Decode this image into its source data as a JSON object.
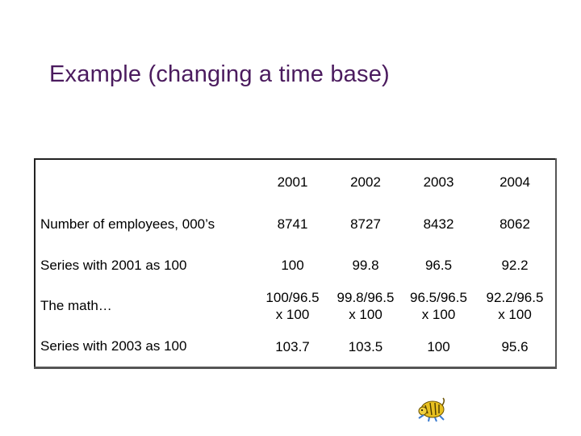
{
  "title": "Example (changing a time base)",
  "table": {
    "years": [
      "2001",
      "2002",
      "2003",
      "2004"
    ],
    "rows": [
      {
        "label": "Number of employees, 000’s",
        "values": [
          "8741",
          "8727",
          "8432",
          "8062"
        ]
      },
      {
        "label": "Series with 2001 as 100",
        "values": [
          "100",
          "99.8",
          "96.5",
          "92.2"
        ]
      },
      {
        "label": "The math…",
        "values": [
          {
            "l1": "100/96.5",
            "l2": "x 100"
          },
          {
            "l1": "99.8/96.5",
            "l2": "x 100"
          },
          {
            "l1": "96.5/96.5",
            "l2": "x 100"
          },
          {
            "l1": "92.2/96.5",
            "l2": "x 100"
          }
        ]
      },
      {
        "label": "Series with 2003 as 100",
        "values": [
          "103.7",
          "103.5",
          "100",
          "95.6"
        ]
      }
    ]
  },
  "mascot": {
    "icon": "tiger-clipart-icon",
    "color": "#e8c020"
  }
}
